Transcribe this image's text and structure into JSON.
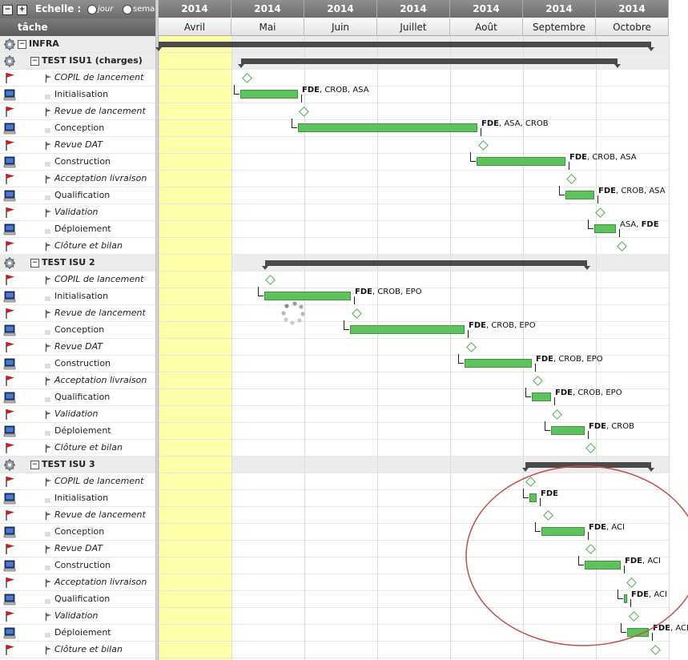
{
  "toolbar": {
    "echelle_label": "Echelle :",
    "jour_label": "jour",
    "semaine_label": "sema"
  },
  "task_header": "tâche",
  "years": [
    "2014",
    "2014",
    "2014",
    "2014",
    "2014",
    "2014",
    "2014"
  ],
  "months": [
    "Avril",
    "Mai",
    "Juin",
    "Juillet",
    "Août",
    "Septembre",
    "Octobre"
  ],
  "rows": [
    {
      "label": "INFRA",
      "type": "root"
    },
    {
      "label": "TEST ISU1 (charges)",
      "type": "group"
    },
    {
      "label": "COPIL de lancement",
      "type": "milestone"
    },
    {
      "label": "Initialisation",
      "type": "task",
      "res": "<b>FDE</b>, CROB, ASA"
    },
    {
      "label": "Revue de lancement",
      "type": "milestone"
    },
    {
      "label": "Conception",
      "type": "task",
      "res": "<b>FDE</b>, ASA, CROB"
    },
    {
      "label": "Revue DAT",
      "type": "milestone"
    },
    {
      "label": "Construction",
      "type": "task",
      "res": "<b>FDE</b>, CROB, ASA"
    },
    {
      "label": "Acceptation livraison",
      "type": "milestone"
    },
    {
      "label": "Qualification",
      "type": "task",
      "res": "<b>FDE</b>, CROB, ASA"
    },
    {
      "label": "Validation",
      "type": "milestone"
    },
    {
      "label": "Déploiement",
      "type": "task",
      "res": "ASA, <b>FDE</b>"
    },
    {
      "label": "Clôture et bilan",
      "type": "milestone"
    },
    {
      "label": "TEST ISU 2",
      "type": "group"
    },
    {
      "label": "COPIL de lancement",
      "type": "milestone"
    },
    {
      "label": "Initialisation",
      "type": "task",
      "res": "<b>FDE</b>, CROB, EPO"
    },
    {
      "label": "Revue de lancement",
      "type": "milestone"
    },
    {
      "label": "Conception",
      "type": "task",
      "res": "<b>FDE</b>, CROB, EPO"
    },
    {
      "label": "Revue DAT",
      "type": "milestone"
    },
    {
      "label": "Construction",
      "type": "task",
      "res": "<b>FDE</b>, CROB, EPO"
    },
    {
      "label": "Acceptation livraison",
      "type": "milestone"
    },
    {
      "label": "Qualification",
      "type": "task",
      "res": "<b>FDE</b>, CROB, EPO"
    },
    {
      "label": "Validation",
      "type": "milestone"
    },
    {
      "label": "Déploiement",
      "type": "task",
      "res": "<b>FDE</b>, CROB"
    },
    {
      "label": "Clôture et bilan",
      "type": "milestone"
    },
    {
      "label": "TEST ISU 3",
      "type": "group"
    },
    {
      "label": "COPIL de lancement",
      "type": "milestone"
    },
    {
      "label": "Initialisation",
      "type": "task",
      "res": "<b>FDE</b>"
    },
    {
      "label": "Revue de lancement",
      "type": "milestone"
    },
    {
      "label": "Conception",
      "type": "task",
      "res": "<b>FDE</b>, ACI"
    },
    {
      "label": "Revue DAT",
      "type": "milestone"
    },
    {
      "label": "Construction",
      "type": "task",
      "res": "<b>FDE</b>, ACI"
    },
    {
      "label": "Acceptation livraison",
      "type": "milestone"
    },
    {
      "label": "Qualification",
      "type": "task",
      "res": "<b>FDE</b>, ACI"
    },
    {
      "label": "Validation",
      "type": "milestone"
    },
    {
      "label": "Déploiement",
      "type": "task",
      "res": "<b>FDE</b>, ACI"
    },
    {
      "label": "Clôture et bilan",
      "type": "milestone"
    }
  ],
  "colors": {
    "bar": "#5fc25f",
    "summary": "#4a4a4a",
    "today": "#ffffa8",
    "annotation": "#c0504d"
  }
}
